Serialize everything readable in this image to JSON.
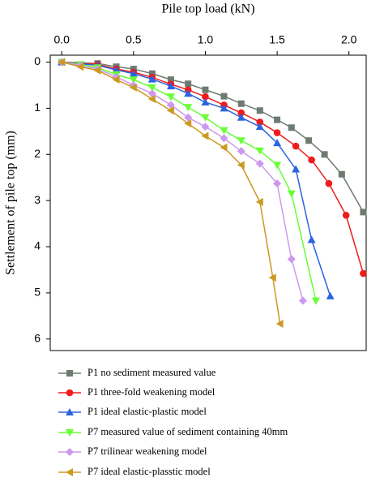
{
  "chart_data": {
    "type": "line",
    "x_label": "Pile top load (kN)",
    "y_label": "Settlement of pile top (mm)",
    "x_axis_top": true,
    "y_inverted": true,
    "xlim": [
      -0.08,
      2.12
    ],
    "ylim": [
      -0.15,
      6.25
    ],
    "xticks": [
      {
        "value": 0,
        "label": "0.0"
      },
      0.5,
      {
        "value": 1,
        "label": "1.0"
      },
      1.5,
      {
        "value": 2,
        "label": "2.0"
      }
    ],
    "yticks": [
      0,
      1,
      2,
      3,
      4,
      5,
      6
    ],
    "series": [
      {
        "name": "P1 no sediment measured value",
        "color": "#6d7b70",
        "marker": "square",
        "x": [
          0,
          0.25,
          0.38,
          0.5,
          0.63,
          0.76,
          0.88,
          1.0,
          1.13,
          1.25,
          1.38,
          1.5,
          1.6,
          1.72,
          1.83,
          1.95,
          2.1
        ],
        "values": [
          0,
          0.03,
          0.1,
          0.15,
          0.25,
          0.38,
          0.47,
          0.6,
          0.74,
          0.9,
          1.05,
          1.25,
          1.42,
          1.7,
          2.0,
          2.43,
          3.25
        ]
      },
      {
        "name": "P1 three-fold weakening model",
        "color": "#ee1c1c",
        "marker": "circle",
        "x": [
          0,
          0.25,
          0.38,
          0.5,
          0.63,
          0.76,
          0.88,
          1.0,
          1.13,
          1.25,
          1.38,
          1.5,
          1.63,
          1.74,
          1.86,
          1.98,
          2.1
        ],
        "values": [
          0,
          0.05,
          0.15,
          0.22,
          0.33,
          0.48,
          0.6,
          0.75,
          0.93,
          1.1,
          1.3,
          1.53,
          1.82,
          2.12,
          2.63,
          3.32,
          4.58
        ]
      },
      {
        "name": "P1 ideal elastic-plastic model",
        "color": "#2a64e0",
        "marker": "triangle-up",
        "x": [
          0,
          0.25,
          0.38,
          0.5,
          0.63,
          0.76,
          0.88,
          1.0,
          1.13,
          1.25,
          1.38,
          1.5,
          1.63,
          1.74,
          1.87
        ],
        "values": [
          0,
          0.07,
          0.17,
          0.25,
          0.37,
          0.52,
          0.68,
          0.87,
          1.0,
          1.2,
          1.4,
          1.75,
          2.32,
          3.85,
          5.07
        ]
      },
      {
        "name": "P7 measured value of sediment containing 40mm",
        "color": "#66ff33",
        "marker": "triangle-down",
        "x": [
          0,
          0.13,
          0.25,
          0.38,
          0.5,
          0.63,
          0.76,
          0.88,
          1.0,
          1.13,
          1.25,
          1.38,
          1.5,
          1.6,
          1.77
        ],
        "values": [
          0,
          0.05,
          0.12,
          0.27,
          0.38,
          0.55,
          0.75,
          0.98,
          1.2,
          1.48,
          1.7,
          1.92,
          2.23,
          2.85,
          5.17
        ]
      },
      {
        "name": "P7 trilinear weakening model",
        "color": "#cc99ee",
        "marker": "diamond",
        "x": [
          0,
          0.13,
          0.25,
          0.38,
          0.5,
          0.63,
          0.76,
          0.88,
          1.0,
          1.13,
          1.25,
          1.38,
          1.5,
          1.6,
          1.68
        ],
        "values": [
          0,
          0.07,
          0.15,
          0.32,
          0.5,
          0.68,
          0.93,
          1.2,
          1.4,
          1.65,
          1.93,
          2.2,
          2.63,
          4.27,
          5.17
        ]
      },
      {
        "name": "P7 ideal elastic-plasstic model",
        "color": "#cc9922",
        "marker": "triangle-left",
        "x": [
          0,
          0.13,
          0.25,
          0.38,
          0.5,
          0.63,
          0.76,
          0.88,
          1.0,
          1.13,
          1.25,
          1.38,
          1.47,
          1.52
        ],
        "values": [
          0,
          0.1,
          0.18,
          0.38,
          0.55,
          0.8,
          1.05,
          1.33,
          1.6,
          1.85,
          2.23,
          3.03,
          4.67,
          5.67
        ]
      }
    ]
  }
}
